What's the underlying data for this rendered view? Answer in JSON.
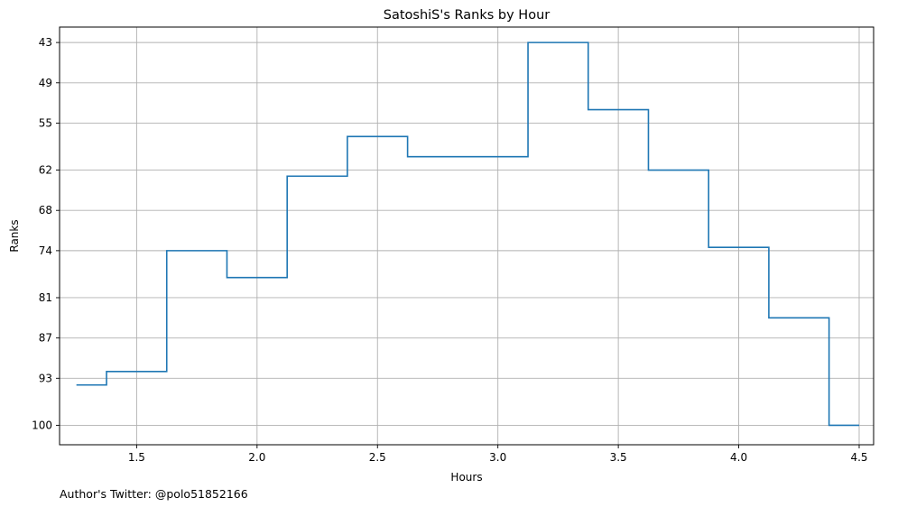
{
  "chart_data": {
    "type": "line",
    "step": "post",
    "title": "SatoshiS's Ranks by Hour",
    "xlabel": "Hours",
    "ylabel": "Ranks",
    "footnote": "Author's Twitter: @polo51852166",
    "xlim": [
      1.18,
      4.56
    ],
    "ylim": [
      102.9,
      40.7
    ],
    "y_inverted": true,
    "xticks": [
      1.5,
      2.0,
      2.5,
      3.0,
      3.5,
      4.0,
      4.5
    ],
    "xtick_labels": [
      "1.5",
      "2.0",
      "2.5",
      "3.0",
      "3.5",
      "4.0",
      "4.5"
    ],
    "yticks": [
      43,
      49,
      55,
      62,
      68,
      74,
      81,
      87,
      93,
      100
    ],
    "ytick_labels": [
      "43",
      "49",
      "55",
      "62",
      "68",
      "74",
      "81",
      "87",
      "93",
      "100"
    ],
    "grid": true,
    "color": "#1f77b4",
    "series": [
      {
        "x": [
          1.25,
          1.375,
          1.625,
          1.875,
          2.125,
          2.375,
          2.625,
          3.125,
          3.375,
          3.625,
          3.875,
          4.125,
          4.375,
          4.5
        ],
        "y": [
          94,
          92,
          74,
          78,
          62.9,
          57,
          60,
          43,
          53,
          62,
          73.5,
          84,
          100,
          100
        ]
      }
    ]
  }
}
